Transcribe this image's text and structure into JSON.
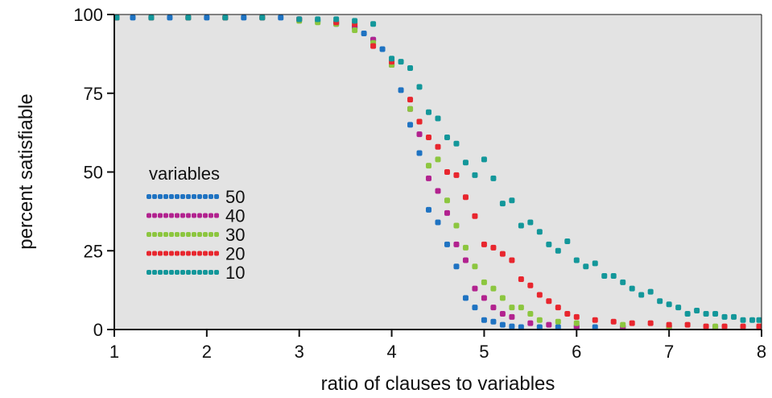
{
  "chart_data": {
    "type": "scatter",
    "title": "",
    "xlabel": "ratio of clauses to variables",
    "ylabel": "percent satisfiable",
    "xlim": [
      1,
      8
    ],
    "ylim": [
      0,
      100
    ],
    "xticks": [
      1,
      2,
      3,
      4,
      5,
      6,
      7,
      8
    ],
    "yticks": [
      0,
      25,
      50,
      75,
      100
    ],
    "grid": false,
    "background": "#e3e3e3",
    "legend": {
      "title": "variables",
      "placement": "left"
    },
    "series": [
      {
        "name": "50",
        "color": "#1f73c2",
        "points": [
          [
            1.0,
            99
          ],
          [
            1.2,
            99
          ],
          [
            1.4,
            99
          ],
          [
            1.6,
            99
          ],
          [
            1.8,
            99
          ],
          [
            2.0,
            99
          ],
          [
            2.2,
            99
          ],
          [
            2.4,
            99
          ],
          [
            2.6,
            99
          ],
          [
            2.8,
            99
          ],
          [
            3.0,
            98.5
          ],
          [
            3.2,
            98
          ],
          [
            3.4,
            97
          ],
          [
            3.6,
            96
          ],
          [
            3.7,
            94
          ],
          [
            3.8,
            92
          ],
          [
            3.9,
            89
          ],
          [
            4.0,
            84
          ],
          [
            4.1,
            76
          ],
          [
            4.2,
            65
          ],
          [
            4.3,
            56
          ],
          [
            4.4,
            38
          ],
          [
            4.5,
            34
          ],
          [
            4.6,
            27
          ],
          [
            4.7,
            20
          ],
          [
            4.8,
            10
          ],
          [
            4.9,
            7
          ],
          [
            5.0,
            3
          ],
          [
            5.1,
            2.5
          ],
          [
            5.2,
            1.5
          ],
          [
            5.3,
            1
          ],
          [
            5.4,
            0.5
          ],
          [
            5.6,
            0.5
          ],
          [
            5.8,
            0.3
          ],
          [
            6.0,
            0.2
          ],
          [
            6.2,
            0.2
          ],
          [
            6.5,
            0.2
          ],
          [
            7.0,
            0.2
          ],
          [
            7.5,
            0.2
          ],
          [
            8.0,
            0.2
          ]
        ]
      },
      {
        "name": "40",
        "color": "#b2228f",
        "points": [
          [
            1.0,
            99
          ],
          [
            1.4,
            99
          ],
          [
            1.8,
            99
          ],
          [
            2.2,
            99
          ],
          [
            2.6,
            99
          ],
          [
            3.0,
            98.5
          ],
          [
            3.4,
            97.5
          ],
          [
            3.6,
            96
          ],
          [
            3.8,
            92
          ],
          [
            4.0,
            84
          ],
          [
            4.2,
            70
          ],
          [
            4.3,
            62
          ],
          [
            4.4,
            48
          ],
          [
            4.5,
            44
          ],
          [
            4.6,
            37
          ],
          [
            4.7,
            27
          ],
          [
            4.8,
            22
          ],
          [
            4.9,
            13
          ],
          [
            5.0,
            10
          ],
          [
            5.1,
            7
          ],
          [
            5.2,
            5
          ],
          [
            5.3,
            4
          ],
          [
            5.5,
            2
          ],
          [
            5.7,
            1.5
          ],
          [
            6.0,
            1
          ],
          [
            6.5,
            0.7
          ],
          [
            7.0,
            0.5
          ],
          [
            7.5,
            0.5
          ],
          [
            8.0,
            0.5
          ]
        ]
      },
      {
        "name": "30",
        "color": "#8cc63f",
        "points": [
          [
            1.0,
            99
          ],
          [
            1.4,
            99
          ],
          [
            1.8,
            99
          ],
          [
            2.2,
            99
          ],
          [
            2.6,
            99
          ],
          [
            3.0,
            98
          ],
          [
            3.2,
            97.5
          ],
          [
            3.4,
            97
          ],
          [
            3.6,
            95
          ],
          [
            3.8,
            91
          ],
          [
            4.0,
            84
          ],
          [
            4.2,
            70
          ],
          [
            4.3,
            66
          ],
          [
            4.4,
            52
          ],
          [
            4.5,
            54
          ],
          [
            4.6,
            41
          ],
          [
            4.7,
            33
          ],
          [
            4.8,
            26
          ],
          [
            4.9,
            20
          ],
          [
            5.0,
            15
          ],
          [
            5.1,
            13
          ],
          [
            5.2,
            10
          ],
          [
            5.3,
            7
          ],
          [
            5.4,
            7
          ],
          [
            5.5,
            5
          ],
          [
            5.6,
            3
          ],
          [
            5.8,
            2.5
          ],
          [
            6.0,
            2
          ],
          [
            6.5,
            1.5
          ],
          [
            7.0,
            1
          ],
          [
            7.5,
            1
          ],
          [
            8.0,
            1
          ]
        ]
      },
      {
        "name": "20",
        "color": "#e8262e",
        "points": [
          [
            1.0,
            99
          ],
          [
            1.4,
            99
          ],
          [
            1.8,
            99
          ],
          [
            2.2,
            99
          ],
          [
            2.6,
            99
          ],
          [
            3.0,
            98.5
          ],
          [
            3.4,
            97.5
          ],
          [
            3.6,
            97
          ],
          [
            3.8,
            90
          ],
          [
            4.0,
            85
          ],
          [
            4.2,
            73
          ],
          [
            4.3,
            66
          ],
          [
            4.4,
            61
          ],
          [
            4.5,
            58
          ],
          [
            4.6,
            50
          ],
          [
            4.7,
            49
          ],
          [
            4.8,
            42
          ],
          [
            4.9,
            36
          ],
          [
            5.0,
            27
          ],
          [
            5.1,
            26
          ],
          [
            5.2,
            24
          ],
          [
            5.3,
            22
          ],
          [
            5.4,
            16
          ],
          [
            5.5,
            14
          ],
          [
            5.6,
            11
          ],
          [
            5.7,
            9
          ],
          [
            5.8,
            7
          ],
          [
            5.9,
            5
          ],
          [
            6.0,
            4
          ],
          [
            6.2,
            3
          ],
          [
            6.4,
            2.5
          ],
          [
            6.6,
            2
          ],
          [
            6.8,
            2
          ],
          [
            7.0,
            1.5
          ],
          [
            7.2,
            1.5
          ],
          [
            7.4,
            1
          ],
          [
            7.6,
            1
          ],
          [
            7.8,
            1
          ],
          [
            8.0,
            1
          ]
        ]
      },
      {
        "name": "10",
        "color": "#13979a",
        "points": [
          [
            1.0,
            99
          ],
          [
            1.4,
            99
          ],
          [
            1.8,
            99
          ],
          [
            2.2,
            99
          ],
          [
            2.6,
            99
          ],
          [
            3.0,
            98.5
          ],
          [
            3.2,
            98.5
          ],
          [
            3.4,
            98.5
          ],
          [
            3.6,
            98
          ],
          [
            3.8,
            97
          ],
          [
            4.0,
            86
          ],
          [
            4.1,
            85
          ],
          [
            4.2,
            83
          ],
          [
            4.3,
            77
          ],
          [
            4.4,
            69
          ],
          [
            4.5,
            67
          ],
          [
            4.6,
            61
          ],
          [
            4.7,
            59
          ],
          [
            4.8,
            53
          ],
          [
            4.9,
            49
          ],
          [
            5.0,
            54
          ],
          [
            5.1,
            48
          ],
          [
            5.2,
            40
          ],
          [
            5.3,
            41
          ],
          [
            5.4,
            33
          ],
          [
            5.5,
            34
          ],
          [
            5.6,
            31
          ],
          [
            5.7,
            27
          ],
          [
            5.8,
            25
          ],
          [
            5.9,
            28
          ],
          [
            6.0,
            22
          ],
          [
            6.1,
            20
          ],
          [
            6.2,
            21
          ],
          [
            6.3,
            17
          ],
          [
            6.4,
            17
          ],
          [
            6.5,
            15
          ],
          [
            6.6,
            13
          ],
          [
            6.7,
            11
          ],
          [
            6.8,
            12
          ],
          [
            6.9,
            9
          ],
          [
            7.0,
            8
          ],
          [
            7.1,
            7
          ],
          [
            7.2,
            5
          ],
          [
            7.3,
            6
          ],
          [
            7.4,
            5
          ],
          [
            7.5,
            5
          ],
          [
            7.6,
            4
          ],
          [
            7.7,
            4
          ],
          [
            7.8,
            3
          ],
          [
            7.9,
            3
          ],
          [
            8.0,
            3
          ]
        ]
      }
    ]
  }
}
